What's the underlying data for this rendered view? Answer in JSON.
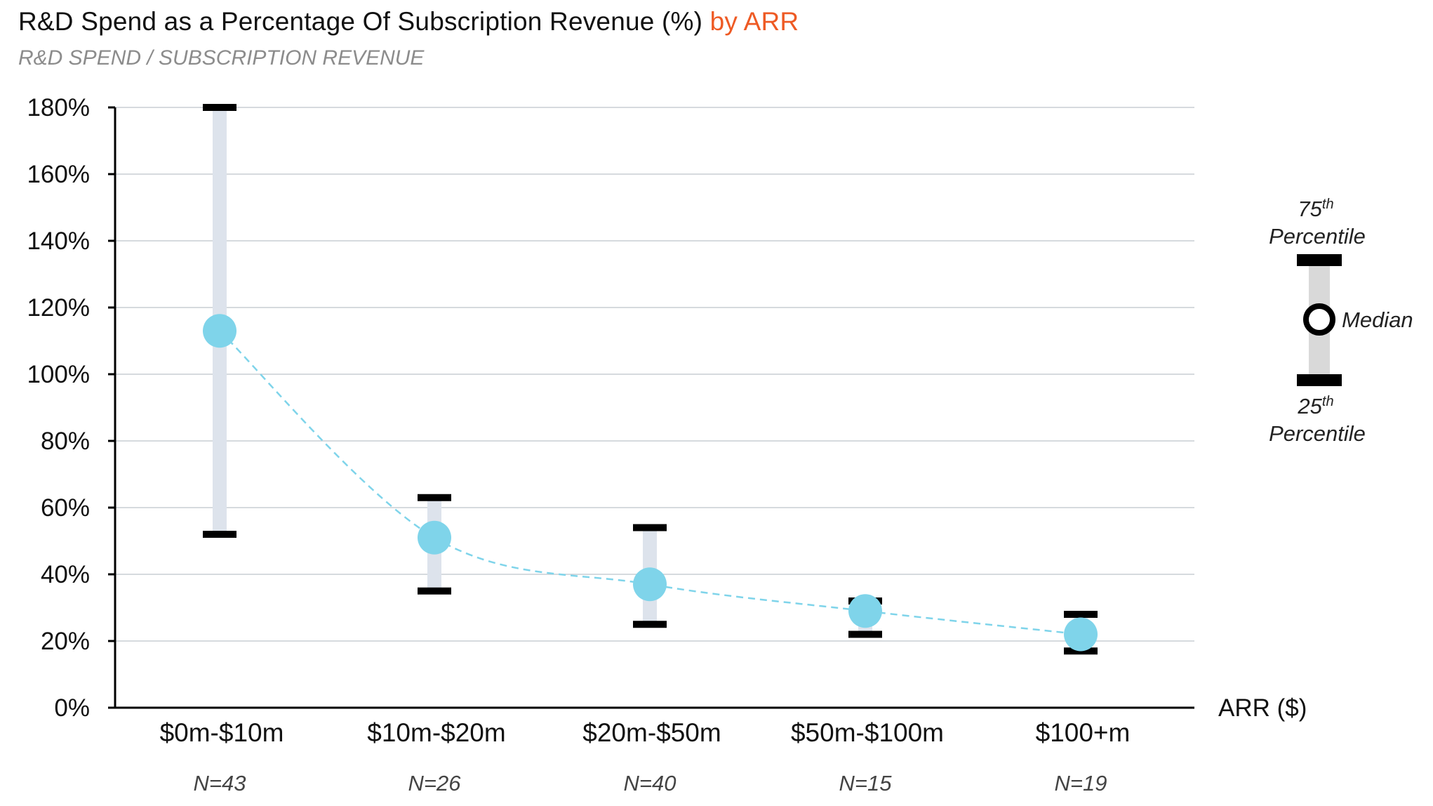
{
  "title": {
    "main": "R&D Spend as a Percentage Of Subscription Revenue (%)",
    "accent": "by ARR",
    "subtitle": "R&D SPEND / SUBSCRIPTION REVENUE"
  },
  "chart_data": {
    "type": "range-dot",
    "title": "R&D Spend as a Percentage Of Subscription Revenue (%) by ARR",
    "subtitle": "R&D SPEND / SUBSCRIPTION REVENUE",
    "xlabel": "ARR ($)",
    "ylabel": "",
    "ylim": [
      0,
      180
    ],
    "yticks": [
      0,
      20,
      40,
      60,
      80,
      100,
      120,
      140,
      160,
      180
    ],
    "ytick_labels": [
      "0%",
      "20%",
      "40%",
      "60%",
      "80%",
      "100%",
      "120%",
      "140%",
      "160%",
      "180%"
    ],
    "grid": true,
    "categories": [
      "$0m-$10m",
      "$10m-$20m",
      "$20m-$50m",
      "$50m-$100m",
      "$100+m"
    ],
    "n_labels": [
      "N=43",
      "N=26",
      "N=40",
      "N=15",
      "N=19"
    ],
    "series": [
      {
        "name": "75th Percentile",
        "values": [
          180,
          63,
          54,
          32,
          28
        ]
      },
      {
        "name": "Median",
        "values": [
          113,
          51,
          37,
          29,
          22
        ]
      },
      {
        "name": "25th Percentile",
        "values": [
          52,
          35,
          25,
          22,
          17
        ]
      }
    ],
    "median_trend_line": "dashed",
    "colors": {
      "median": "#7fd4ea",
      "range_bar": "#dde3ec",
      "whisker": "#000000",
      "grid": "#c8cdd3",
      "accent": "#ee5a24"
    },
    "legend": {
      "position": "right",
      "top_label_number": "75",
      "top_label_sup": "th",
      "top_label_word": "Percentile",
      "middle_label": "Median",
      "bottom_label_number": "25",
      "bottom_label_sup": "th",
      "bottom_label_word": "Percentile"
    }
  }
}
